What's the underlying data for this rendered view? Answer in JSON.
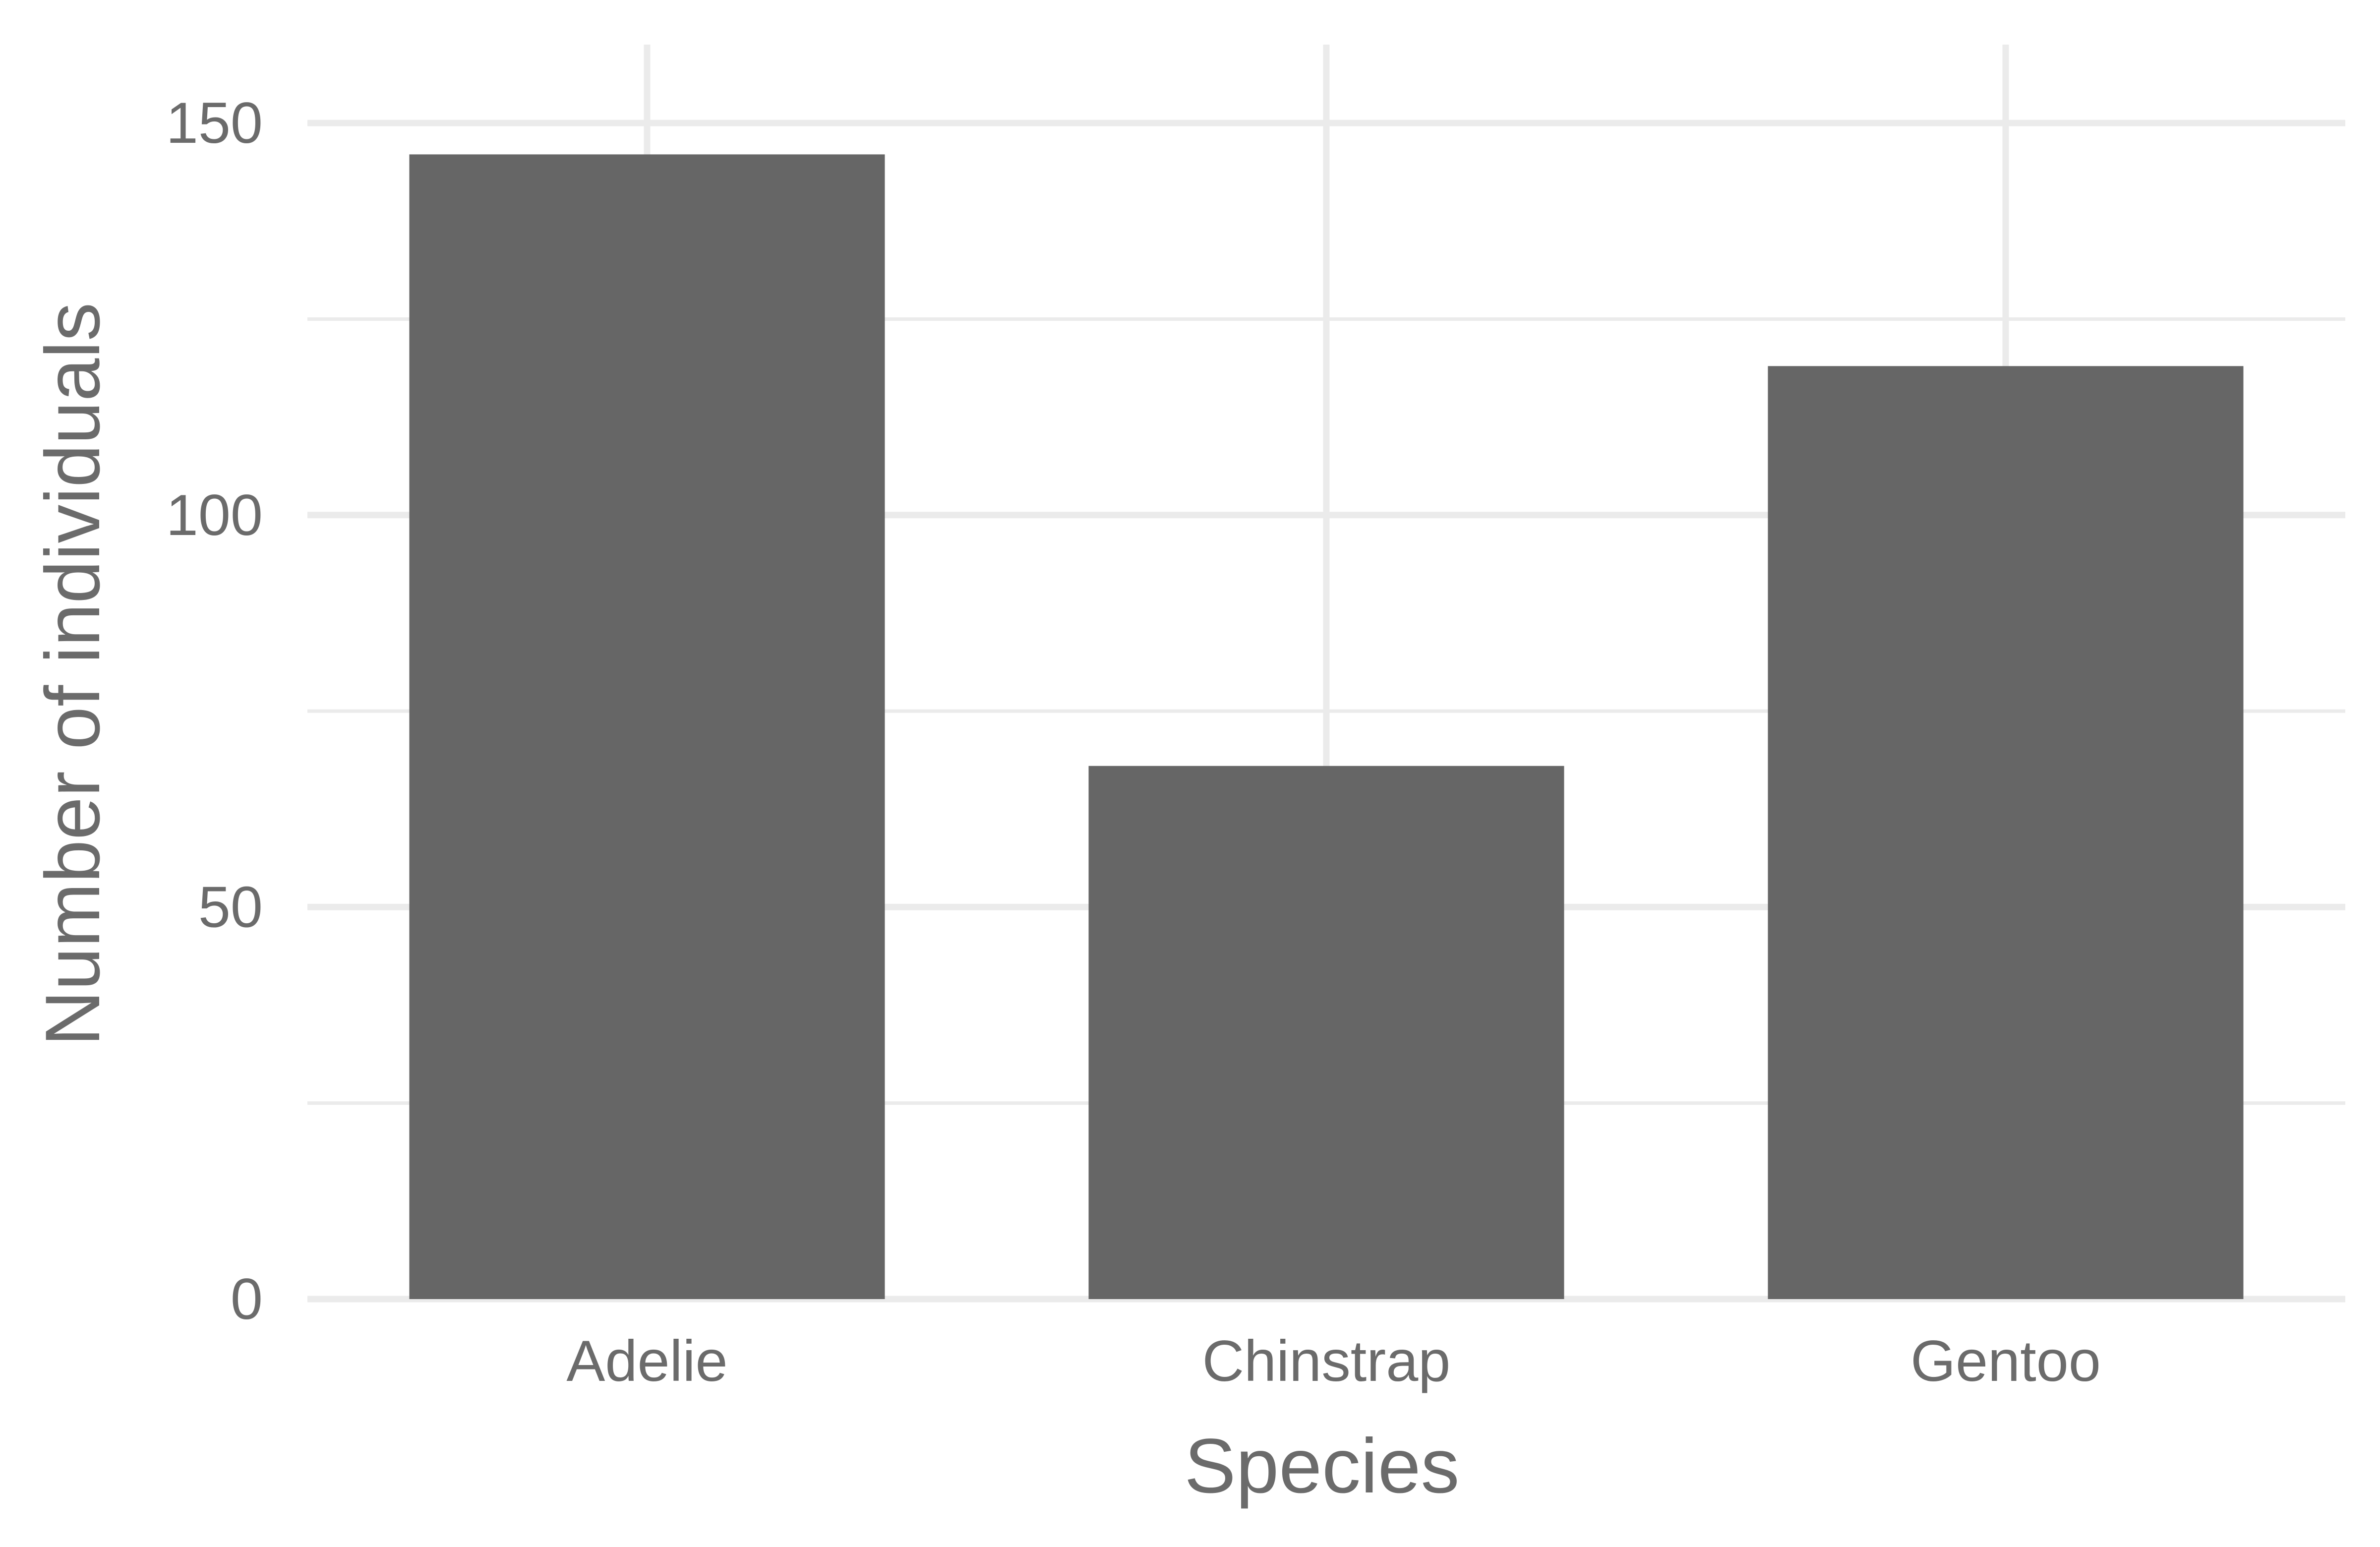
{
  "chart_data": {
    "type": "bar",
    "categories": [
      "Adelie",
      "Chinstrap",
      "Gentoo"
    ],
    "values": [
      146,
      68,
      119
    ],
    "xlabel": "Species",
    "ylabel": "Number of individuals",
    "ylim": [
      0,
      160
    ],
    "yticks": [
      0,
      50,
      100,
      150
    ],
    "yticks_minor": [
      25,
      75,
      125
    ],
    "grid": true,
    "legend": "none",
    "bar_color": "#666666",
    "grid_color": "#ebebeb",
    "text_color": "#6b6b6b"
  }
}
